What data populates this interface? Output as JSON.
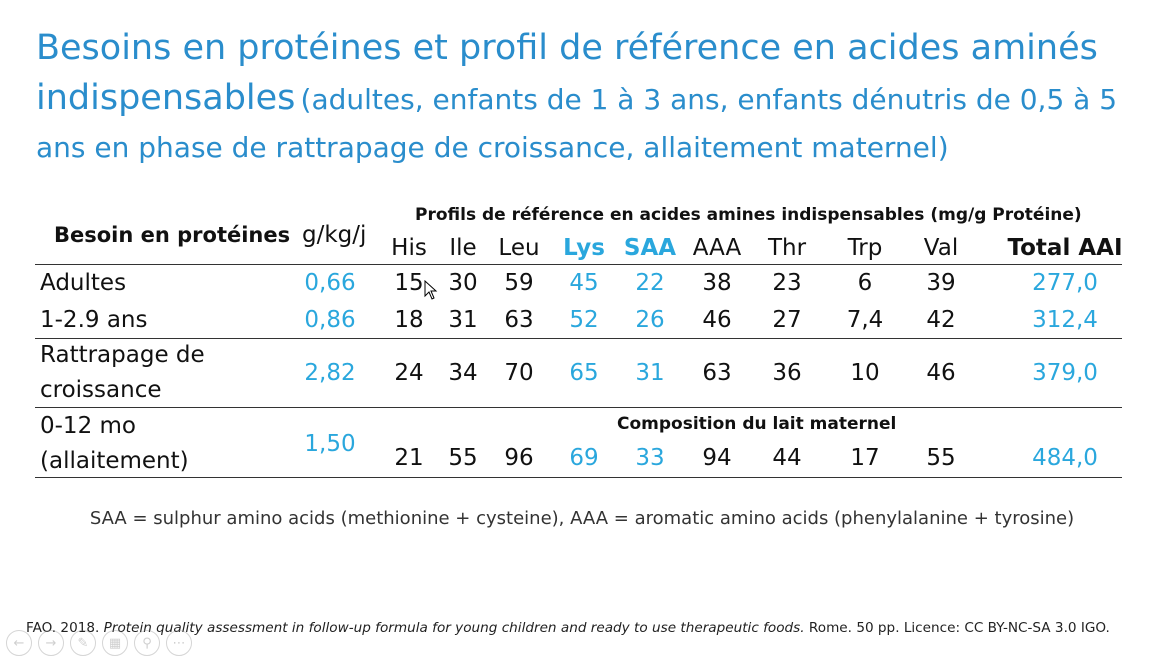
{
  "title": {
    "line_big": "Besoins en protéines et profil de référence en acides aminés indispensables",
    "line_small": "(adultes, enfants de 1 à 3 ans, enfants dénutris de 0,5 à 5 ans en phase de rattrapage de croissance, allaitement maternel)"
  },
  "table": {
    "protein_header": "Besoin en protéines",
    "unit_header": "g/kg/j",
    "profiles_header": "Profils de référence en acides amines indispensables (mg/g Protéine)",
    "columns": [
      "His",
      "Ile",
      "Leu",
      "Lys",
      "SAA",
      "AAA",
      "Thr",
      "Trp",
      "Val",
      "Total AAI"
    ],
    "rows": [
      {
        "label": "Adultes",
        "need": "0,66",
        "values": [
          "15",
          "30",
          "59",
          "45",
          "22",
          "38",
          "23",
          "6",
          "39",
          "277,0"
        ]
      },
      {
        "label": "1-2.9 ans",
        "need": "0,86",
        "values": [
          "18",
          "31",
          "63",
          "52",
          "26",
          "46",
          "27",
          "7,4",
          "42",
          "312,4"
        ]
      },
      {
        "label_1": "Rattrapage de",
        "label_2": "croissance",
        "need": "2,82",
        "values": [
          "24",
          "34",
          "70",
          "65",
          "31",
          "63",
          "36",
          "10",
          "46",
          "379,0"
        ]
      },
      {
        "label_1": "0-12 mo",
        "label_2": "(allaitement)",
        "need": "1,50",
        "subheader": "Composition du lait maternel",
        "values": [
          "21",
          "55",
          "96",
          "69",
          "33",
          "94",
          "44",
          "17",
          "55",
          "484,0"
        ]
      }
    ]
  },
  "note": "SAA = sulphur amino acids (methionine + cysteine), AAA = aromatic amino acids (phenylalanine + tyrosine)",
  "citation": {
    "pre": "FAO. 2018. ",
    "italic": "Protein quality assessment in follow-up formula for young children and ready to use therapeutic foods.",
    "post": " Rome. 50 pp. Licence: CC BY-NC-SA 3.0 IGO."
  },
  "colors": {
    "title": "#2a8dcc",
    "highlight": "#2aa7dd"
  },
  "toolbar_icons": [
    "back-icon",
    "forward-icon",
    "pen-icon",
    "slides-icon",
    "zoom-icon",
    "more-icon"
  ]
}
